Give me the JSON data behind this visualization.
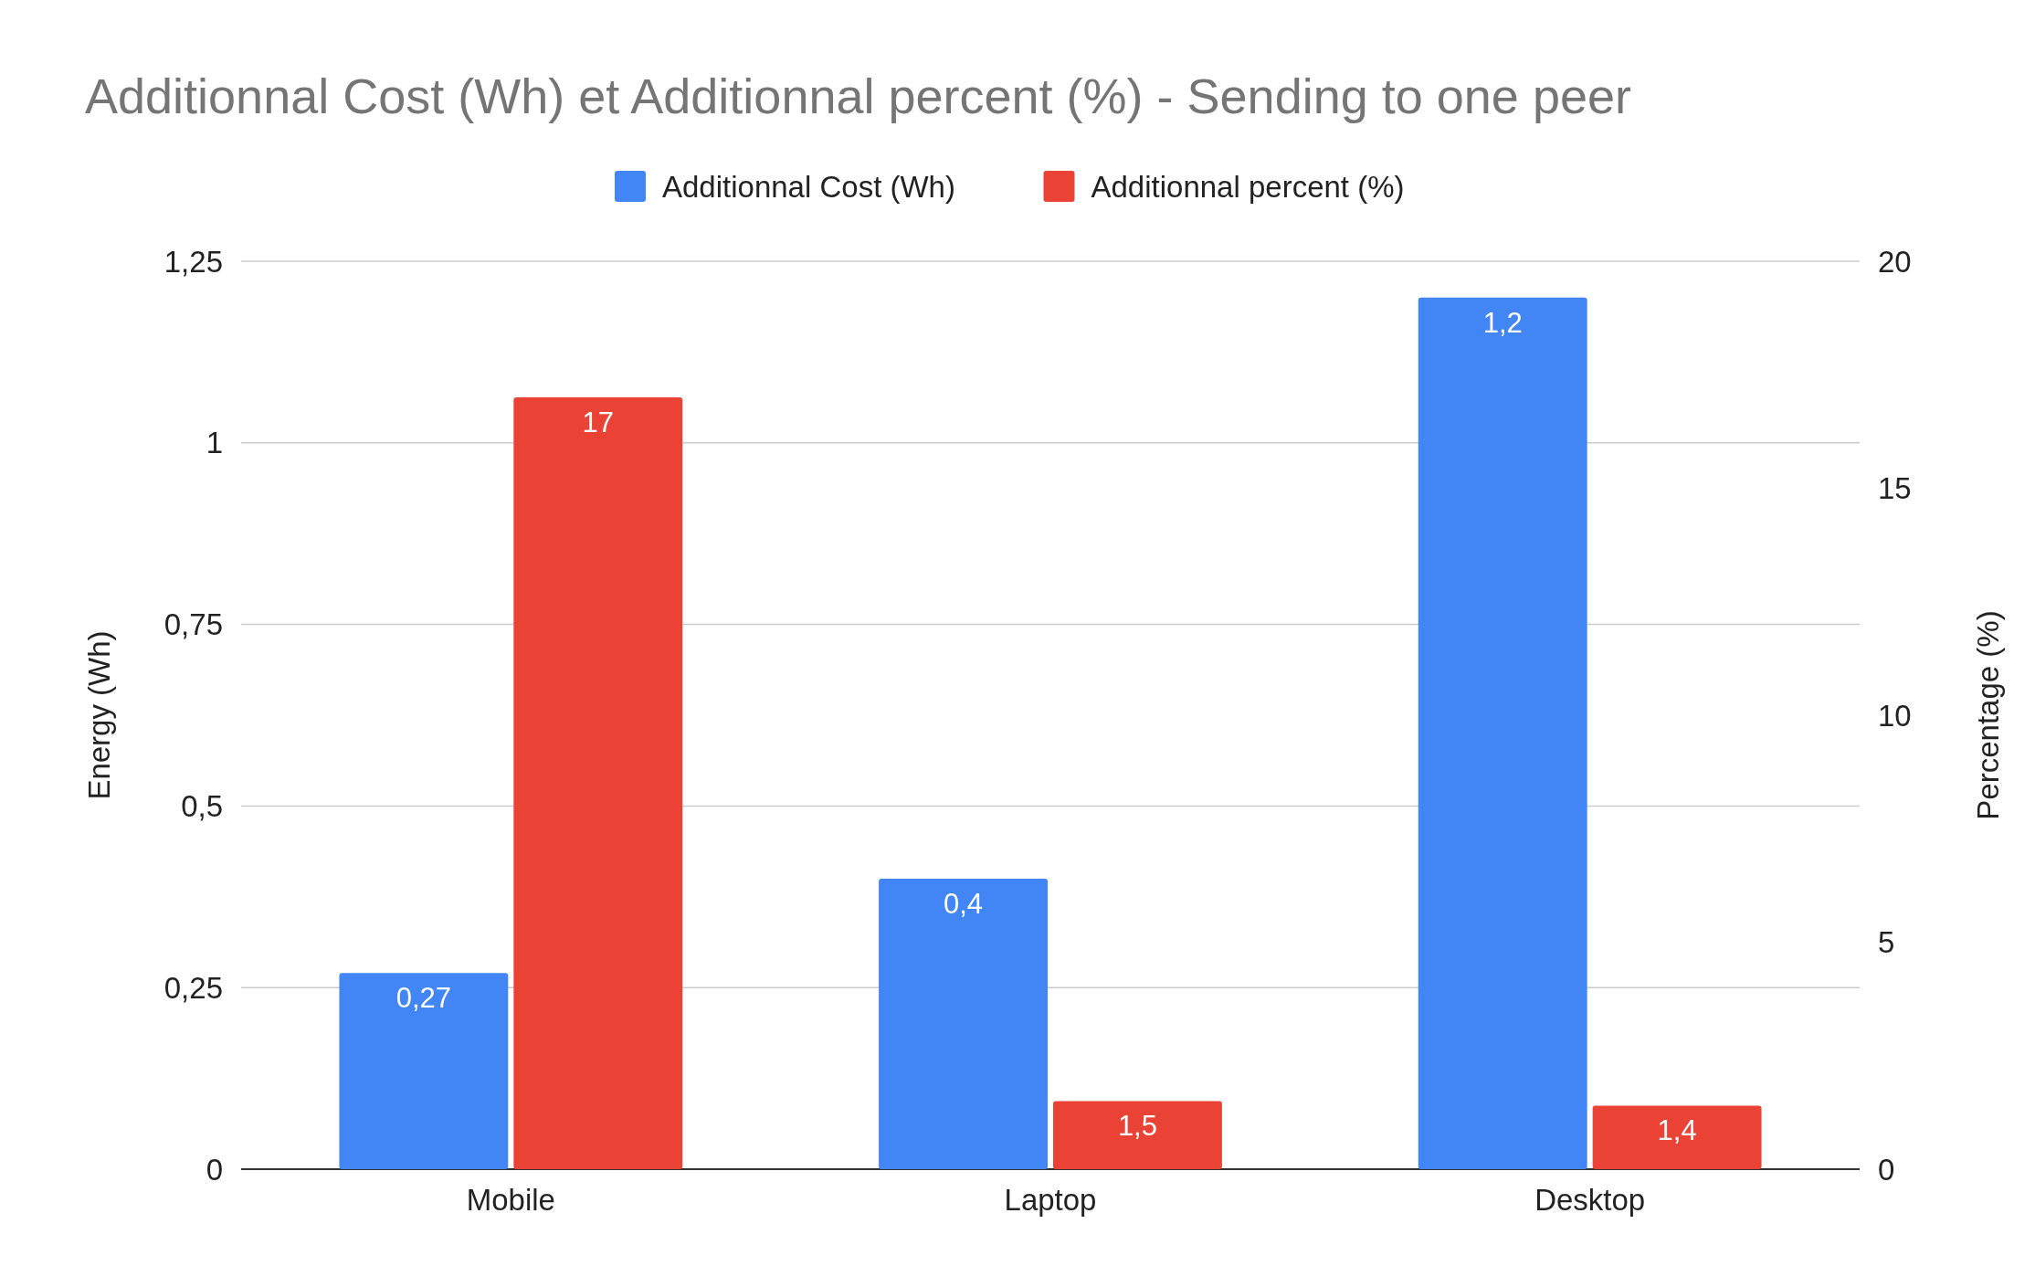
{
  "chart_data": {
    "type": "bar",
    "title": "Additionnal Cost (Wh) et Additionnal percent (%) - Sending to one peer",
    "ylabel": "Energy (Wh)",
    "y2label": "Percentage (%)",
    "categories": [
      "Mobile",
      "Laptop",
      "Desktop"
    ],
    "series": [
      {
        "name": "Additionnal Cost (Wh)",
        "color": "#4285f4",
        "values": [
          0.27,
          0.4,
          1.2
        ],
        "value_labels": [
          "0,27",
          "0,4",
          "1,2"
        ]
      },
      {
        "name": "Additionnal percent (%)",
        "color": "#ea4335",
        "values": [
          17,
          1.5,
          1.4
        ],
        "value_labels": [
          "17",
          "1,5",
          "1,4"
        ],
        "axis": "y2"
      }
    ],
    "ylim": [
      0,
      1.25
    ],
    "yticks": [
      0,
      {
        "value": 0.25,
        "label": "0,25"
      },
      {
        "value": 0.5,
        "label": "0,5"
      },
      {
        "value": 0.75,
        "label": "0,75"
      },
      1,
      {
        "value": 1.25,
        "label": "1,25"
      }
    ],
    "y2lim": [
      0,
      20
    ],
    "y2ticks": [
      0,
      5,
      10,
      15,
      20
    ],
    "grid": "y",
    "legend": "top"
  }
}
